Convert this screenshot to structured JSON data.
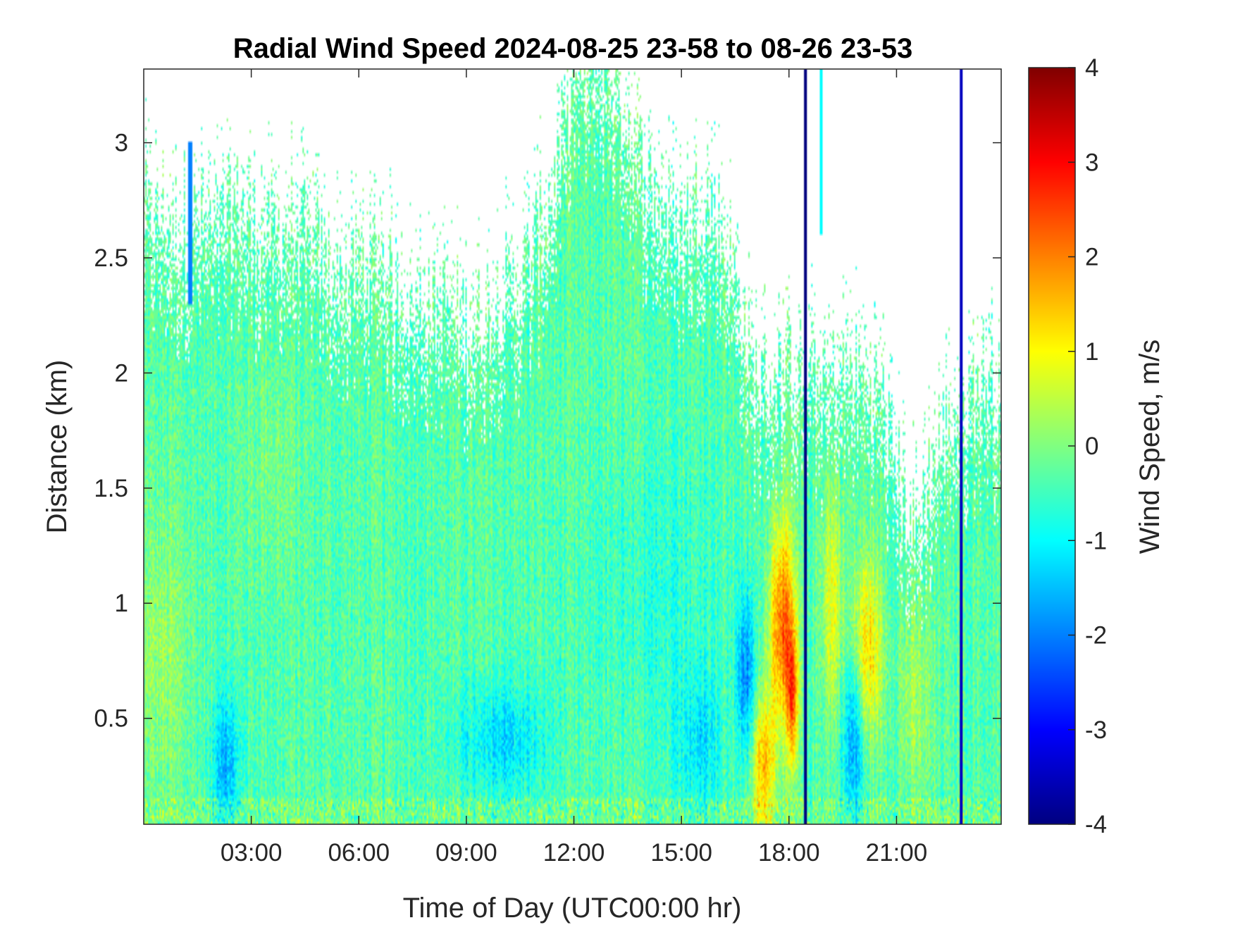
{
  "chart_data": {
    "type": "heatmap",
    "title": "Radial Wind Speed 2024-08-25 23-58 to 08-26 23-53",
    "xlabel": "Time of Day (UTC00:00 hr)",
    "ylabel": "Distance (km)",
    "colorbar_label": "Wind Speed, m/s",
    "colormap": "jet",
    "missing_color": "#ffffff",
    "xlim_hours": [
      0,
      23.92
    ],
    "ylim_km": [
      0.04,
      3.32
    ],
    "clim": [
      -4,
      4
    ],
    "x_ticks": [
      {
        "value": 3,
        "label": "03:00"
      },
      {
        "value": 6,
        "label": "06:00"
      },
      {
        "value": 9,
        "label": "09:00"
      },
      {
        "value": 12,
        "label": "12:00"
      },
      {
        "value": 15,
        "label": "15:00"
      },
      {
        "value": 18,
        "label": "18:00"
      },
      {
        "value": 21,
        "label": "21:00"
      }
    ],
    "y_ticks": [
      {
        "value": 0.5,
        "label": "0.5"
      },
      {
        "value": 1,
        "label": "1"
      },
      {
        "value": 1.5,
        "label": "1.5"
      },
      {
        "value": 2,
        "label": "2"
      },
      {
        "value": 2.5,
        "label": "2.5"
      },
      {
        "value": 3,
        "label": "3"
      }
    ],
    "colorbar_ticks": [
      {
        "value": -4,
        "label": "-4"
      },
      {
        "value": -3,
        "label": "-3"
      },
      {
        "value": -2,
        "label": "-2"
      },
      {
        "value": -1,
        "label": "-1"
      },
      {
        "value": 0,
        "label": "0"
      },
      {
        "value": 1,
        "label": "1"
      },
      {
        "value": 2,
        "label": "2"
      },
      {
        "value": 3,
        "label": "3"
      },
      {
        "value": 4,
        "label": "4"
      }
    ],
    "data_top_km": [
      [
        0,
        2.7
      ],
      [
        0.5,
        2.65
      ],
      [
        1,
        2.6
      ],
      [
        1.5,
        2.65
      ],
      [
        2,
        2.6
      ],
      [
        2.5,
        2.75
      ],
      [
        3,
        2.65
      ],
      [
        3.5,
        2.6
      ],
      [
        4,
        2.65
      ],
      [
        4.5,
        2.6
      ],
      [
        5,
        2.5
      ],
      [
        5.5,
        2.4
      ],
      [
        6,
        2.45
      ],
      [
        6.5,
        2.55
      ],
      [
        7,
        2.35
      ],
      [
        7.5,
        2.3
      ],
      [
        8,
        2.3
      ],
      [
        8.5,
        2.3
      ],
      [
        9,
        2.2
      ],
      [
        9.5,
        2.25
      ],
      [
        10,
        2.35
      ],
      [
        10.5,
        2.4
      ],
      [
        11,
        2.6
      ],
      [
        11.5,
        2.85
      ],
      [
        12,
        3.32
      ],
      [
        13,
        3.32
      ],
      [
        13.5,
        3.1
      ],
      [
        14,
        2.85
      ],
      [
        14.5,
        2.7
      ],
      [
        15,
        2.65
      ],
      [
        15.5,
        2.75
      ],
      [
        16,
        2.7
      ],
      [
        16.5,
        2.4
      ],
      [
        17,
        2.0
      ],
      [
        17.5,
        1.95
      ],
      [
        18,
        2.05
      ],
      [
        18.5,
        2.0
      ],
      [
        19,
        1.95
      ],
      [
        19.5,
        2.0
      ],
      [
        20,
        2.0
      ],
      [
        20.5,
        1.95
      ],
      [
        21,
        1.6
      ],
      [
        21.5,
        1.3
      ],
      [
        22,
        1.6
      ],
      [
        22.5,
        1.8
      ],
      [
        23,
        1.9
      ],
      [
        23.5,
        2.0
      ],
      [
        23.92,
        1.9
      ]
    ],
    "features": [
      {
        "t": 10,
        "d": 0.4,
        "st": 1.3,
        "sd": 0.25,
        "v": -0.9
      },
      {
        "t": 14,
        "d": 1.0,
        "st": 2.0,
        "sd": 0.6,
        "v": -0.3
      },
      {
        "t": 0.5,
        "d": 0.8,
        "st": 0.8,
        "sd": 0.6,
        "v": 0.5
      },
      {
        "t": 3.5,
        "d": 1.6,
        "st": 0.8,
        "sd": 0.5,
        "v": 0.3
      },
      {
        "t": 17.8,
        "d": 0.9,
        "st": 0.35,
        "sd": 0.45,
        "v": 2.6
      },
      {
        "t": 18.1,
        "d": 0.6,
        "st": 0.15,
        "sd": 0.3,
        "v": 2.2
      },
      {
        "t": 17.3,
        "d": 0.3,
        "st": 0.3,
        "sd": 0.3,
        "v": 2.0
      },
      {
        "t": 20.2,
        "d": 0.8,
        "st": 0.4,
        "sd": 0.4,
        "v": 1.6
      },
      {
        "t": 19.2,
        "d": 1.0,
        "st": 0.3,
        "sd": 0.5,
        "v": 1.2
      },
      {
        "t": 16.8,
        "d": 0.7,
        "st": 0.25,
        "sd": 0.35,
        "v": -1.6
      },
      {
        "t": 19.8,
        "d": 0.4,
        "st": 0.3,
        "sd": 0.35,
        "v": -1.5
      },
      {
        "t": 21.5,
        "d": 0.6,
        "st": 0.5,
        "sd": 0.4,
        "v": 0.6
      },
      {
        "t": 15.5,
        "d": 0.4,
        "st": 0.6,
        "sd": 0.3,
        "v": -0.8
      },
      {
        "t": 2.3,
        "d": 0.3,
        "st": 0.4,
        "sd": 0.3,
        "v": -1.2
      }
    ],
    "dark_streaks": [
      {
        "t": 18.45,
        "d0": 0.04,
        "d1": 3.32,
        "v": -4
      },
      {
        "t": 22.8,
        "d0": 0.04,
        "d1": 3.32,
        "v": -3.5
      },
      {
        "t": 18.9,
        "d0": 2.6,
        "d1": 3.32,
        "v": -1.0
      },
      {
        "t": 1.3,
        "d0": 2.3,
        "d1": 3.0,
        "v": -2.0
      }
    ]
  }
}
